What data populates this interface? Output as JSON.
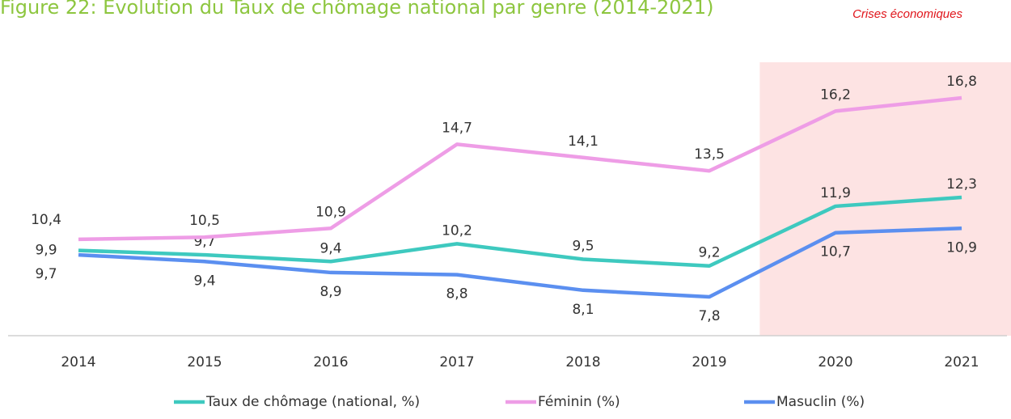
{
  "chart_data": {
    "type": "line",
    "title": "Figure 22: Évolution du Taux de chômage national par genre (2014-2021)",
    "categories": [
      "2014",
      "2015",
      "2016",
      "2017",
      "2018",
      "2019",
      "2020",
      "2021"
    ],
    "series": [
      {
        "name": "Taux de chômage (national, %)",
        "color": "#3ec9bf",
        "values": [
          9.9,
          9.7,
          9.4,
          10.2,
          9.5,
          9.2,
          11.9,
          12.3
        ],
        "value_labels": [
          "9,9",
          "9,7",
          "9,4",
          "10,2",
          "9,5",
          "9,2",
          "11,9",
          "12,3"
        ]
      },
      {
        "name": "Féminin (%)",
        "color": "#ee9de6",
        "values": [
          10.4,
          10.5,
          10.9,
          14.7,
          14.1,
          13.5,
          16.2,
          16.8
        ],
        "value_labels": [
          "10,4",
          "10,5",
          "10,9",
          "14,7",
          "14,1",
          "13,5",
          "16,2",
          "16,8"
        ]
      },
      {
        "name": "Masuclin (%)",
        "color": "#5b8ff0",
        "values": [
          9.7,
          9.4,
          8.9,
          8.8,
          8.1,
          7.8,
          10.7,
          10.9
        ],
        "value_labels": [
          "9,7",
          "9,4",
          "8,9",
          "8,8",
          "8,1",
          "7,8",
          "10,7",
          "10,9"
        ]
      }
    ],
    "highlight": {
      "text": "Crises économiques",
      "from": "2020",
      "to": "2021",
      "color": "#fde3e3"
    },
    "legend": "bottom"
  }
}
